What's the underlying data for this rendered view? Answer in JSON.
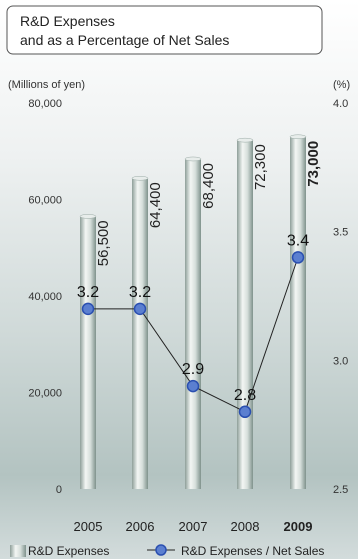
{
  "chart_data": {
    "type": "bar",
    "title_line1": "R&D Expenses",
    "title_line2": "and as a Percentage of Net Sales",
    "left_axis_unit": "(Millions of yen)",
    "right_axis_unit": "(%)",
    "categories": [
      "2005",
      "2006",
      "2007",
      "2008",
      "2009"
    ],
    "emphasized_category": "2009",
    "ylim": [
      0,
      80000
    ],
    "yticks": [
      "0",
      "20,000",
      "40,000",
      "60,000",
      "80,000"
    ],
    "y2lim": [
      2.5,
      4.0
    ],
    "y2ticks": [
      "2.5",
      "3.0",
      "3.5",
      "4.0"
    ],
    "series": [
      {
        "name": "R&D Expenses",
        "type": "bar",
        "axis": "left",
        "values": [
          56500,
          64400,
          68400,
          72300,
          73000
        ],
        "labels": [
          "56,500",
          "64,400",
          "68,400",
          "72,300",
          "73,000"
        ]
      },
      {
        "name": "R&D Expenses / Net Sales",
        "type": "line",
        "axis": "right",
        "values": [
          3.2,
          3.2,
          2.9,
          2.8,
          3.4
        ],
        "labels": [
          "3.2",
          "3.2",
          "2.9",
          "2.8",
          "3.4"
        ]
      }
    ],
    "legend_position": "bottom",
    "colors": {
      "bar": "#b9c6c2",
      "line_marker": "#5b7fd0",
      "marker_stroke": "#2a4fb0",
      "background_top": "#f4f6f6",
      "background_bottom": "#9fb4b2"
    }
  }
}
